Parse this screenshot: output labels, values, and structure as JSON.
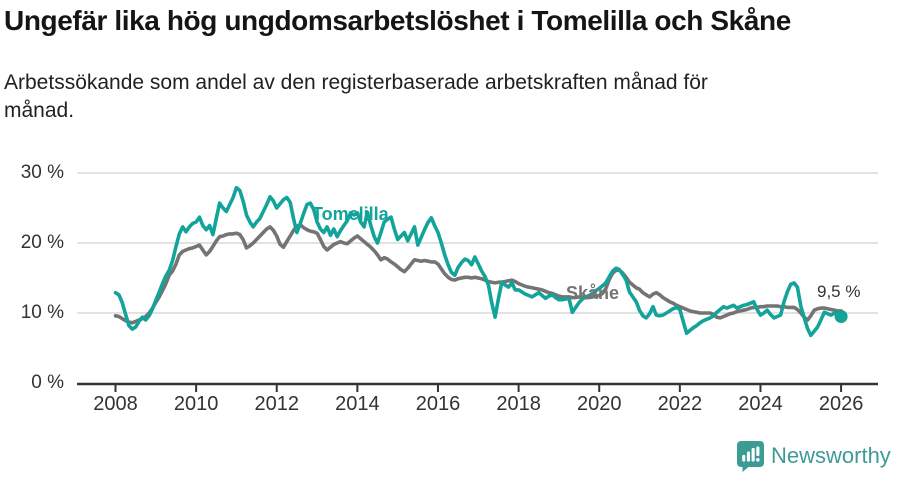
{
  "header": {
    "title": "Ungefär lika hög ungdomsarbetslöshet i Tomelilla och Skåne",
    "subtitle_line1": "Arbetssökande som andel av den registerbaserade arbetskraften månad för",
    "subtitle_line2": "månad."
  },
  "chart_data": {
    "type": "line",
    "title": "Ungefär lika hög ungdomsarbetslöshet i Tomelilla och Skåne",
    "subtitle": "Arbetssökande som andel av den registerbaserade arbetskraften månad för månad.",
    "x_unit": "month",
    "x_start_year": 2008,
    "x_end_point": "2026-01",
    "x_tick_labels": [
      "2008",
      "2010",
      "2012",
      "2014",
      "2016",
      "2018",
      "2020",
      "2022",
      "2024",
      "2026"
    ],
    "x_ticks_years": [
      2008,
      2010,
      2012,
      2014,
      2016,
      2018,
      2020,
      2022,
      2024,
      2026
    ],
    "y_tick_labels": [
      "0 %",
      "10 %",
      "20 %",
      "30 %"
    ],
    "y_ticks": [
      0,
      10,
      20,
      30
    ],
    "ylim": [
      0,
      30
    ],
    "grid": true,
    "legend_position": "inline-labels",
    "end_label": "9,5 %",
    "end_value": 9.5,
    "colors": {
      "tomelilla": "#12a39a",
      "skane": "#747474",
      "grid": "#d8d8d8",
      "axis": "#333333"
    },
    "series": [
      {
        "name": "Tomelilla",
        "color": "#12a39a",
        "values": [
          12.9,
          12.6,
          11.5,
          9.8,
          8.2,
          7.7,
          8.0,
          8.8,
          9.4,
          9.0,
          9.6,
          10.6,
          11.8,
          13.0,
          14.2,
          15.3,
          16.1,
          17.5,
          19.5,
          21.3,
          22.3,
          21.6,
          22.3,
          22.8,
          23.0,
          23.7,
          22.5,
          21.9,
          22.5,
          21.2,
          23.5,
          25.7,
          25.0,
          24.5,
          25.5,
          26.5,
          27.9,
          27.5,
          26.0,
          24.0,
          23.0,
          22.3,
          23.0,
          23.5,
          24.5,
          25.5,
          26.6,
          26.0,
          25.0,
          25.6,
          26.2,
          26.5,
          25.8,
          23.5,
          21.5,
          22.8,
          24.2,
          25.5,
          25.7,
          24.8,
          23.0,
          22.0,
          21.5,
          22.3,
          21.1,
          22.0,
          20.9,
          21.8,
          22.5,
          23.2,
          24.3,
          24.0,
          24.3,
          23.0,
          22.3,
          24.4,
          22.5,
          20.9,
          20.0,
          21.5,
          23.0,
          23.4,
          23.7,
          22.0,
          20.5,
          21.0,
          21.5,
          20.3,
          21.3,
          22.3,
          19.7,
          20.8,
          21.9,
          22.9,
          23.6,
          22.5,
          21.5,
          20.0,
          18.3,
          16.9,
          15.8,
          15.4,
          16.5,
          17.2,
          17.7,
          17.5,
          16.9,
          18.0,
          17.0,
          16.0,
          15.2,
          14.0,
          11.5,
          9.4,
          12.0,
          14.4,
          14.0,
          13.7,
          14.3,
          13.3,
          13.3,
          13.0,
          12.7,
          12.5,
          12.3,
          12.6,
          12.9,
          12.5,
          12.1,
          12.4,
          12.6,
          12.2,
          11.9,
          11.9,
          12.0,
          12.1,
          10.1,
          10.8,
          11.5,
          12.0,
          12.3,
          12.5,
          12.8,
          13.2,
          13.5,
          13.9,
          14.3,
          15.2,
          16.0,
          16.4,
          16.2,
          15.5,
          14.7,
          13.0,
          12.3,
          11.6,
          10.4,
          9.6,
          9.3,
          9.9,
          10.9,
          9.7,
          9.6,
          9.7,
          10.0,
          10.3,
          10.6,
          10.8,
          10.5,
          8.8,
          7.1,
          7.5,
          7.9,
          8.2,
          8.6,
          8.9,
          9.1,
          9.3,
          9.6,
          10.1,
          10.5,
          10.9,
          10.7,
          10.9,
          11.1,
          10.7,
          10.9,
          11.1,
          11.2,
          11.4,
          11.6,
          10.5,
          9.7,
          10.0,
          10.4,
          9.8,
          9.3,
          9.5,
          9.7,
          11.6,
          13.0,
          14.1,
          14.3,
          13.7,
          11.0,
          9.4,
          7.8,
          6.8,
          7.4,
          8.0,
          9.0,
          10.1,
          9.9,
          9.7,
          10.0,
          9.6,
          9.5
        ]
      },
      {
        "name": "Skåne",
        "color": "#747474",
        "values": [
          9.6,
          9.5,
          9.2,
          8.9,
          8.7,
          8.6,
          8.8,
          9.0,
          9.2,
          9.5,
          10.0,
          10.7,
          11.5,
          12.3,
          13.2,
          14.2,
          15.4,
          16.0,
          17.0,
          18.3,
          18.8,
          19.0,
          19.2,
          19.3,
          19.5,
          19.7,
          19.0,
          18.3,
          18.8,
          19.5,
          20.3,
          20.9,
          21.0,
          21.2,
          21.3,
          21.3,
          21.4,
          21.2,
          20.5,
          19.3,
          19.6,
          20.0,
          20.5,
          21.0,
          21.5,
          22.0,
          22.3,
          21.8,
          21.0,
          19.8,
          19.4,
          20.2,
          21.0,
          21.8,
          22.4,
          22.6,
          22.2,
          21.9,
          21.7,
          21.6,
          21.4,
          20.5,
          19.5,
          19.0,
          19.4,
          19.8,
          20.0,
          20.2,
          20.0,
          19.9,
          20.3,
          20.7,
          21.0,
          20.6,
          20.2,
          19.8,
          19.4,
          18.9,
          18.3,
          17.6,
          17.9,
          17.7,
          17.3,
          17.0,
          16.6,
          16.2,
          15.9,
          16.4,
          17.0,
          17.6,
          17.5,
          17.4,
          17.5,
          17.4,
          17.3,
          17.3,
          17.0,
          16.3,
          15.6,
          15.1,
          14.8,
          14.7,
          14.9,
          15.0,
          15.1,
          15.1,
          15.0,
          15.1,
          15.0,
          14.9,
          14.7,
          14.5,
          14.4,
          14.3,
          14.4,
          14.4,
          14.5,
          14.6,
          14.7,
          14.5,
          14.2,
          14.0,
          13.8,
          13.7,
          13.6,
          13.5,
          13.4,
          13.3,
          13.1,
          12.9,
          12.8,
          12.6,
          12.4,
          12.3,
          12.3,
          12.3,
          12.2,
          12.2,
          12.3,
          12.3,
          12.2,
          12.2,
          12.3,
          12.4,
          12.5,
          12.8,
          13.5,
          14.8,
          15.7,
          16.1,
          16.1,
          15.7,
          15.1,
          14.4,
          14.0,
          13.6,
          13.4,
          12.9,
          12.6,
          12.3,
          12.7,
          12.9,
          12.6,
          12.2,
          11.9,
          11.6,
          11.4,
          11.1,
          10.9,
          10.7,
          10.5,
          10.3,
          10.2,
          10.1,
          10.0,
          10.0,
          10.0,
          10.0,
          9.8,
          9.4,
          9.3,
          9.5,
          9.7,
          9.9,
          10.0,
          10.2,
          10.3,
          10.4,
          10.5,
          10.7,
          10.8,
          10.8,
          10.9,
          10.9,
          11.0,
          11.0,
          11.0,
          11.0,
          10.9,
          10.9,
          10.8,
          10.8,
          10.8,
          10.5,
          10.0,
          9.4,
          9.0,
          9.6,
          10.4,
          10.6,
          10.7,
          10.7,
          10.6,
          10.5,
          10.4,
          10.3,
          10.3
        ]
      }
    ]
  },
  "footer": {
    "brand": "Newsworthy"
  }
}
